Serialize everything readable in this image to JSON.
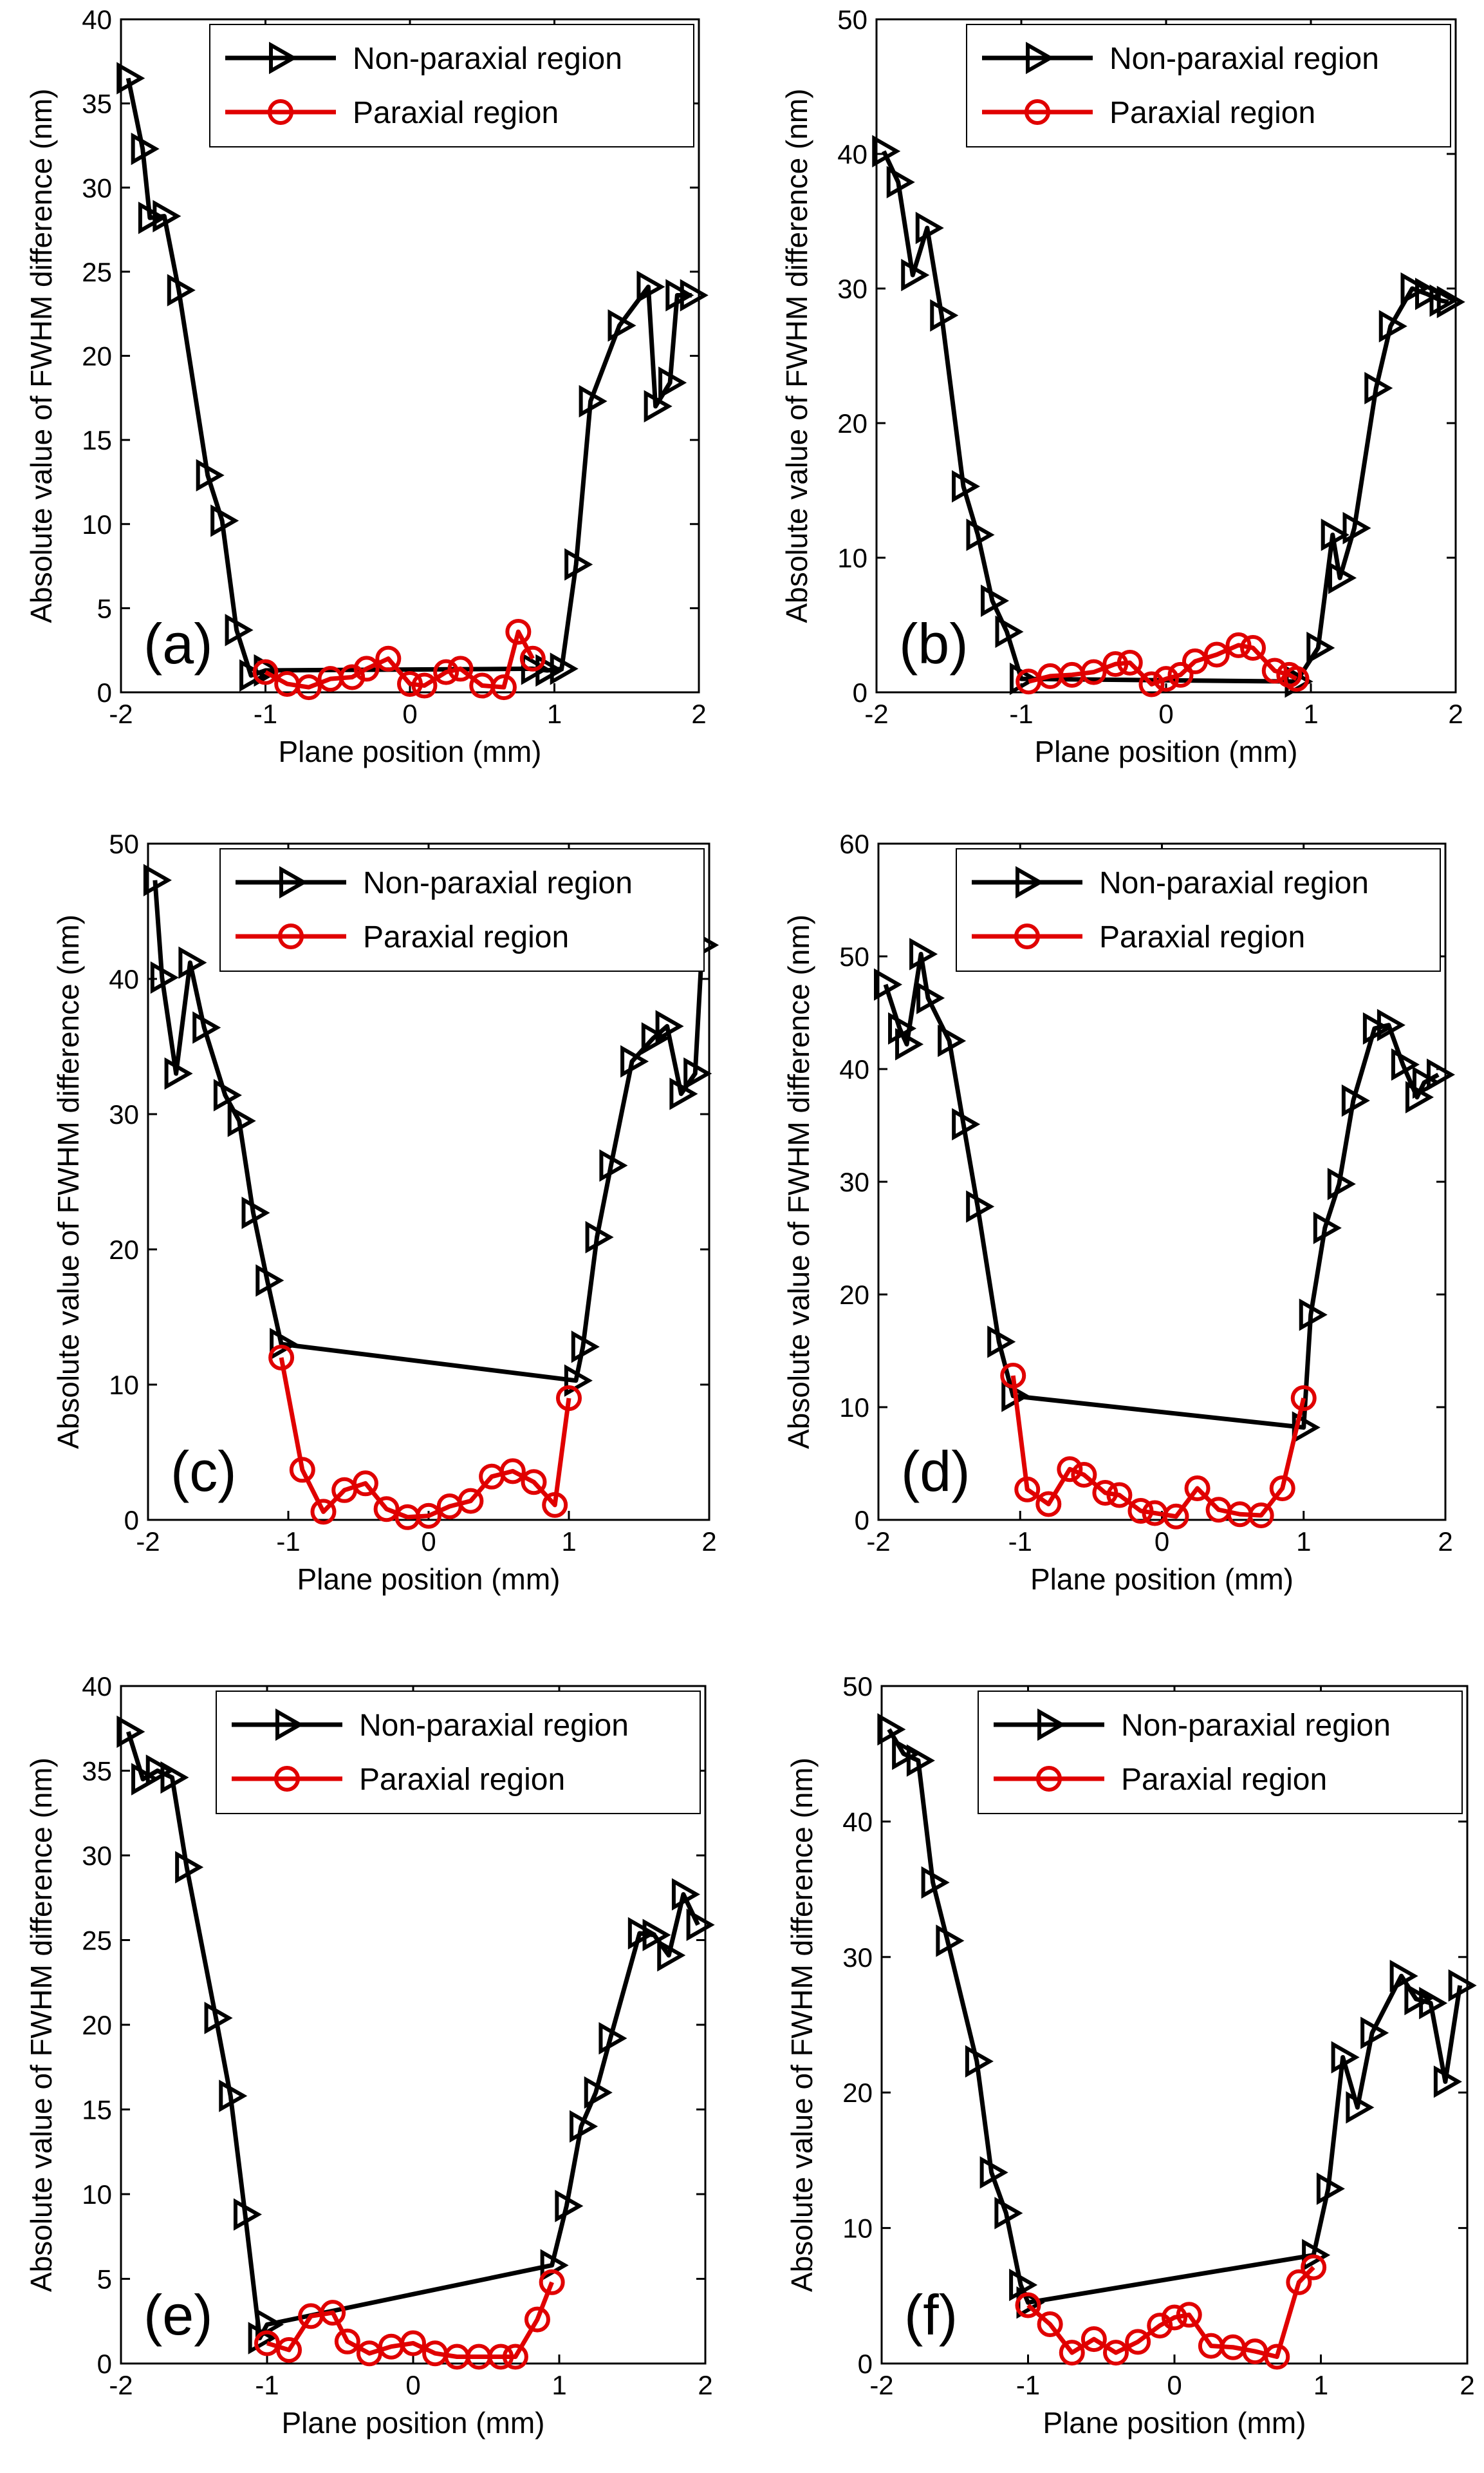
{
  "figure": {
    "series_styles": [
      {
        "color": "#000000",
        "marker": "right-triangle"
      },
      {
        "color": "#e00000",
        "marker": "circle"
      }
    ],
    "legend_location": "top-right"
  },
  "chart_data": [
    {
      "type": "line",
      "panel_label": "(a)",
      "xlabel": "Plane position (mm)",
      "ylabel": "Absolute value of FWHM difference (nm)",
      "xlim": [
        -2,
        2
      ],
      "ylim": [
        0,
        40
      ],
      "xticks": [
        -2,
        -1,
        0,
        1,
        2
      ],
      "yticks": [
        0,
        5,
        10,
        15,
        20,
        25,
        30,
        35,
        40
      ],
      "series": [
        {
          "name": "Non-paraxial region",
          "x": [
            -1.95,
            -1.85,
            -1.8,
            -1.7,
            -1.6,
            -1.4,
            -1.3,
            -1.2,
            -1.1,
            -1.0,
            0.85,
            0.95,
            1.05,
            1.15,
            1.25,
            1.45,
            1.65,
            1.7,
            1.8,
            1.85,
            1.95
          ],
          "y": [
            36.5,
            32.3,
            28.2,
            28.3,
            23.9,
            12.9,
            10.2,
            3.7,
            1.0,
            1.3,
            1.4,
            1.3,
            1.4,
            7.6,
            17.3,
            21.8,
            24.1,
            17.0,
            18.4,
            23.6,
            23.6
          ]
        },
        {
          "name": "Paraxial region",
          "x": [
            -1.0,
            -0.85,
            -0.7,
            -0.55,
            -0.4,
            -0.3,
            -0.15,
            0.0,
            0.1,
            0.25,
            0.35,
            0.5,
            0.65,
            0.75,
            0.85
          ],
          "y": [
            1.2,
            0.5,
            0.3,
            0.8,
            0.9,
            1.4,
            2.0,
            0.5,
            0.4,
            1.2,
            1.4,
            0.4,
            0.3,
            3.6,
            2.0
          ]
        }
      ]
    },
    {
      "type": "line",
      "panel_label": "(b)",
      "xlabel": "Plane position (mm)",
      "ylabel": "Absolute value of FWHM difference (nm)",
      "xlim": [
        -2,
        2
      ],
      "ylim": [
        0,
        50
      ],
      "xticks": [
        -2,
        -1,
        0,
        1,
        2
      ],
      "yticks": [
        0,
        10,
        20,
        30,
        40,
        50
      ],
      "series": [
        {
          "name": "Non-paraxial region",
          "x": [
            -1.95,
            -1.85,
            -1.75,
            -1.65,
            -1.55,
            -1.4,
            -1.3,
            -1.2,
            -1.1,
            -1.0,
            0.9,
            1.05,
            1.15,
            1.2,
            1.3,
            1.45,
            1.55,
            1.7,
            1.8,
            1.9,
            1.95
          ],
          "y": [
            40.2,
            37.9,
            31.0,
            34.5,
            28.0,
            15.3,
            11.7,
            6.8,
            4.5,
            1.0,
            0.8,
            3.3,
            11.7,
            8.5,
            12.2,
            22.6,
            27.2,
            30.0,
            29.6,
            29.1,
            29.0
          ]
        },
        {
          "name": "Paraxial region",
          "x": [
            -0.95,
            -0.8,
            -0.65,
            -0.5,
            -0.35,
            -0.25,
            -0.1,
            0.0,
            0.1,
            0.2,
            0.35,
            0.5,
            0.6,
            0.75,
            0.85,
            0.9
          ],
          "y": [
            0.8,
            1.2,
            1.3,
            1.5,
            2.1,
            2.2,
            0.6,
            1.0,
            1.3,
            2.3,
            2.8,
            3.5,
            3.3,
            1.6,
            1.3,
            1.0
          ]
        }
      ]
    },
    {
      "type": "line",
      "panel_label": "(c)",
      "xlabel": "Plane position (mm)",
      "ylabel": "Absolute value of FWHM difference (nm)",
      "xlim": [
        -2,
        2
      ],
      "ylim": [
        0,
        50
      ],
      "xticks": [
        -2,
        -1,
        0,
        1,
        2
      ],
      "yticks": [
        0,
        10,
        20,
        30,
        40,
        50
      ],
      "series": [
        {
          "name": "Non-paraxial region",
          "x": [
            -1.95,
            -1.9,
            -1.8,
            -1.7,
            -1.6,
            -1.45,
            -1.35,
            -1.25,
            -1.15,
            -1.05,
            1.05,
            1.1,
            1.2,
            1.3,
            1.45,
            1.6,
            1.7,
            1.8,
            1.9,
            1.95
          ],
          "y": [
            47.3,
            40.1,
            33.0,
            41.2,
            36.4,
            31.4,
            29.5,
            22.7,
            17.7,
            13.0,
            10.3,
            12.8,
            20.9,
            26.2,
            33.9,
            35.6,
            36.5,
            31.5,
            33.0,
            42.5
          ]
        },
        {
          "name": "Paraxial region",
          "x": [
            -1.05,
            -0.9,
            -0.75,
            -0.6,
            -0.45,
            -0.3,
            -0.15,
            0.0,
            0.15,
            0.3,
            0.45,
            0.6,
            0.75,
            0.9,
            1.0
          ],
          "y": [
            12.0,
            3.7,
            0.6,
            2.2,
            2.7,
            0.8,
            0.2,
            0.3,
            1.0,
            1.4,
            3.2,
            3.6,
            2.8,
            1.1,
            9.0
          ]
        }
      ]
    },
    {
      "type": "line",
      "panel_label": "(d)",
      "xlabel": "Plane position (mm)",
      "ylabel": "Absolute value of FWHM difference (nm)",
      "xlim": [
        -2,
        2
      ],
      "ylim": [
        0,
        60
      ],
      "xticks": [
        -2,
        -1,
        0,
        1,
        2
      ],
      "yticks": [
        0,
        10,
        20,
        30,
        40,
        50,
        60
      ],
      "series": [
        {
          "name": "Non-paraxial region",
          "x": [
            -1.95,
            -1.85,
            -1.8,
            -1.7,
            -1.65,
            -1.5,
            -1.4,
            -1.3,
            -1.15,
            -1.05,
            1.0,
            1.05,
            1.15,
            1.25,
            1.35,
            1.5,
            1.6,
            1.7,
            1.8,
            1.85,
            1.95
          ],
          "y": [
            47.5,
            43.6,
            42.2,
            50.2,
            46.3,
            42.5,
            35.1,
            27.8,
            15.8,
            11.0,
            8.2,
            18.2,
            25.9,
            29.8,
            37.2,
            43.6,
            43.9,
            40.4,
            37.5,
            38.8,
            39.5
          ]
        },
        {
          "name": "Paraxial region",
          "x": [
            -1.05,
            -0.95,
            -0.8,
            -0.65,
            -0.55,
            -0.4,
            -0.3,
            -0.15,
            -0.05,
            0.1,
            0.25,
            0.4,
            0.55,
            0.7,
            0.85,
            1.0
          ],
          "y": [
            12.8,
            2.7,
            1.4,
            4.5,
            4.0,
            2.4,
            2.2,
            0.8,
            0.6,
            0.3,
            2.8,
            0.9,
            0.5,
            0.4,
            2.8,
            10.8
          ]
        }
      ]
    },
    {
      "type": "line",
      "panel_label": "(e)",
      "xlabel": "Plane position (mm)",
      "ylabel": "Absolute value of FWHM difference (nm)",
      "xlim": [
        -2,
        2
      ],
      "ylim": [
        0,
        40
      ],
      "xticks": [
        -2,
        -1,
        0,
        1,
        2
      ],
      "yticks": [
        0,
        5,
        10,
        15,
        20,
        25,
        30,
        35,
        40
      ],
      "series": [
        {
          "name": "Non-paraxial region",
          "x": [
            -1.95,
            -1.85,
            -1.75,
            -1.65,
            -1.55,
            -1.35,
            -1.25,
            -1.15,
            -1.05,
            -1.0,
            0.95,
            1.05,
            1.15,
            1.25,
            1.35,
            1.55,
            1.65,
            1.75,
            1.85,
            1.95
          ],
          "y": [
            37.3,
            34.5,
            35.0,
            34.6,
            29.3,
            20.4,
            15.8,
            8.8,
            1.5,
            2.3,
            5.8,
            9.3,
            14.0,
            16.0,
            19.2,
            25.4,
            25.3,
            24.1,
            27.7,
            25.9
          ]
        },
        {
          "name": "Paraxial region",
          "x": [
            -1.0,
            -0.85,
            -0.7,
            -0.55,
            -0.45,
            -0.3,
            -0.15,
            0.0,
            0.15,
            0.3,
            0.45,
            0.6,
            0.7,
            0.85,
            0.95
          ],
          "y": [
            1.2,
            0.8,
            2.8,
            3.0,
            1.3,
            0.6,
            1.0,
            1.2,
            0.6,
            0.4,
            0.4,
            0.4,
            0.4,
            2.6,
            4.8
          ]
        }
      ]
    },
    {
      "type": "line",
      "panel_label": "(f)",
      "xlabel": "Plane position (mm)",
      "ylabel": "Absolute value of FWHM difference (nm)",
      "xlim": [
        -2,
        2
      ],
      "ylim": [
        0,
        50
      ],
      "xticks": [
        -2,
        -1,
        0,
        1,
        2
      ],
      "yticks": [
        0,
        10,
        20,
        30,
        40,
        50
      ],
      "series": [
        {
          "name": "Non-paraxial region",
          "x": [
            -1.95,
            -1.85,
            -1.75,
            -1.65,
            -1.55,
            -1.35,
            -1.25,
            -1.15,
            -1.05,
            -1.0,
            0.95,
            1.05,
            1.15,
            1.25,
            1.35,
            1.55,
            1.65,
            1.75,
            1.85,
            1.95
          ],
          "y": [
            46.8,
            45.0,
            44.5,
            35.5,
            31.2,
            22.3,
            14.1,
            11.1,
            5.8,
            4.5,
            8.0,
            12.9,
            22.6,
            18.9,
            24.4,
            28.6,
            26.9,
            26.6,
            20.8,
            27.9
          ]
        },
        {
          "name": "Paraxial region",
          "x": [
            -1.0,
            -0.85,
            -0.7,
            -0.55,
            -0.4,
            -0.25,
            -0.1,
            0.0,
            0.1,
            0.25,
            0.4,
            0.55,
            0.7,
            0.85,
            0.95
          ],
          "y": [
            4.3,
            2.9,
            0.8,
            1.8,
            0.8,
            1.6,
            2.8,
            3.4,
            3.6,
            1.3,
            1.2,
            0.9,
            0.5,
            6.0,
            7.1
          ]
        }
      ]
    }
  ]
}
